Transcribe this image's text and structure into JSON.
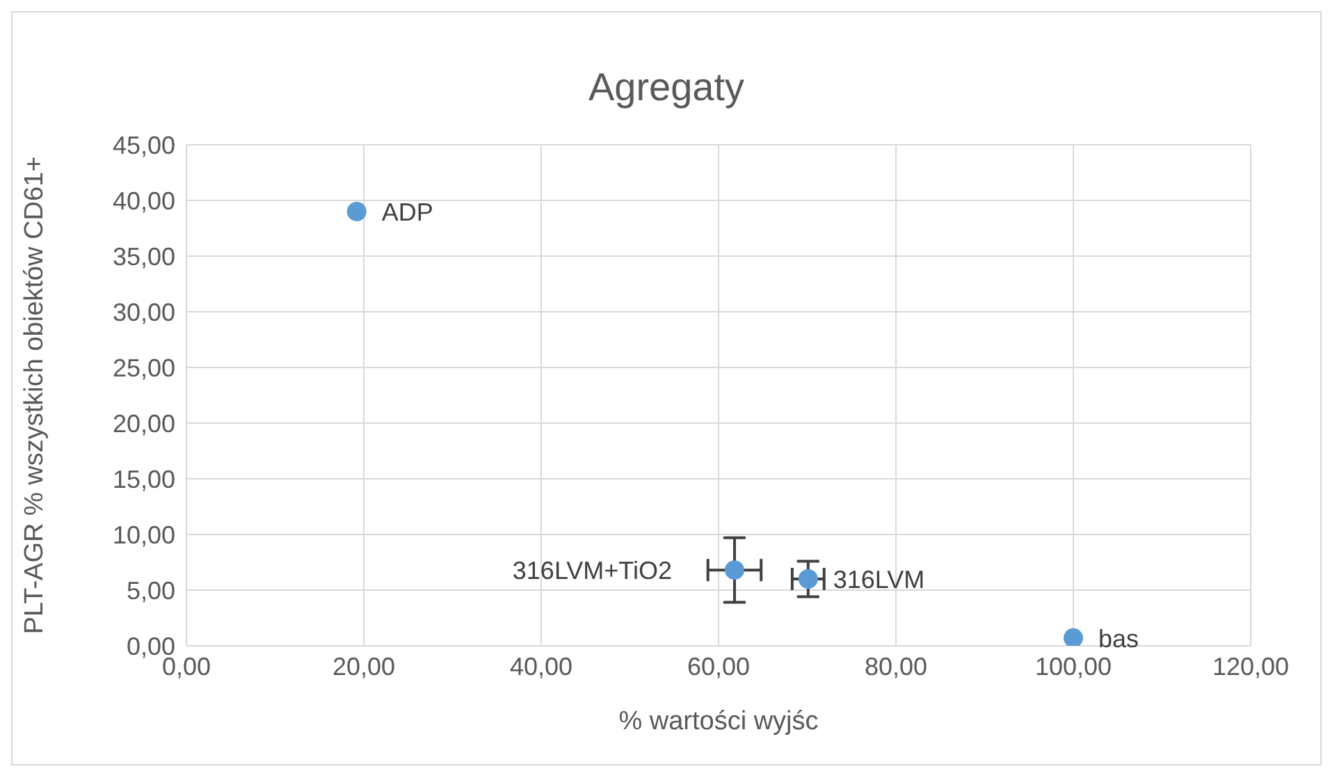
{
  "chart_data": {
    "type": "scatter",
    "title": "Agregaty",
    "xlabel": "% wartości wyjśc",
    "ylabel": "PLT-AGR % wszystkich obiektów CD61+",
    "x": [
      19.2,
      61.8,
      70.1,
      100
    ],
    "values": [
      39,
      6.8,
      6,
      0.7
    ],
    "errors": [
      null,
      2.9,
      1.6,
      null
    ],
    "xerrors": [
      null,
      3,
      1.8,
      null
    ],
    "color": "#5b9bd5",
    "marker": "circle",
    "annotations": [
      {
        "text": "ADP",
        "x": 19.2,
        "y": 39
      },
      {
        "text": "316LVM+TiO2",
        "x": 61.8,
        "y": 6.8
      },
      {
        "text": "316LVM",
        "x": 70.1,
        "y": 6
      },
      {
        "text": "bas",
        "x": 100,
        "y": 0.7
      }
    ],
    "xlim": [
      0,
      120
    ],
    "xticks": [
      {
        "value": 0,
        "label": "0,00"
      },
      {
        "value": 20,
        "label": "20,00"
      },
      {
        "value": 40,
        "label": "40,00"
      },
      {
        "value": 60,
        "label": "60,00"
      },
      {
        "value": 80,
        "label": "80,00"
      },
      {
        "value": 100,
        "label": "100,00"
      },
      {
        "value": 120,
        "label": "120,00"
      }
    ],
    "ylim": [
      0,
      45
    ],
    "yticks": [
      {
        "value": 0,
        "label": "0,00"
      },
      {
        "value": 5,
        "label": "5,00"
      },
      {
        "value": 10,
        "label": "10,00"
      },
      {
        "value": 15,
        "label": "15,00"
      },
      {
        "value": 20,
        "label": "20,00"
      },
      {
        "value": 25,
        "label": "25,00"
      },
      {
        "value": 30,
        "label": "30,00"
      },
      {
        "value": 35,
        "label": "35,00"
      },
      {
        "value": 40,
        "label": "40,00"
      },
      {
        "value": 45,
        "label": "45,00"
      }
    ],
    "grid": true,
    "legend": false
  }
}
